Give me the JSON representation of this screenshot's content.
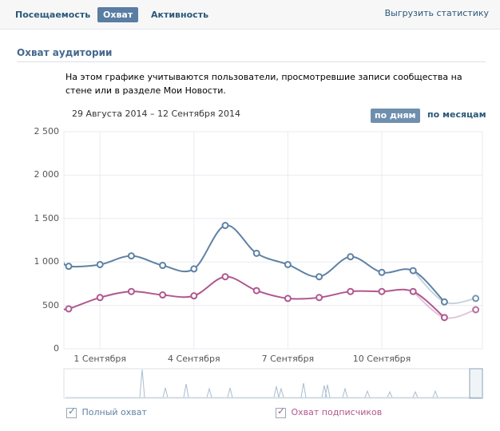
{
  "tabs": [
    {
      "label": "Посещаемость"
    },
    {
      "label": "Охват"
    },
    {
      "label": "Активность"
    }
  ],
  "export_label": "Выгрузить статистику",
  "section_title": "Охват аудитории",
  "description": "На этом графике учитываются пользователи, просмотревшие записи сообщества на стене или в разделе Мои Новости.",
  "date_range": "29 Августа 2014 – 12 Сентября 2014",
  "period_buttons": {
    "days": "по дням",
    "months": "по месяцам"
  },
  "legend": [
    {
      "label": "Полный охват",
      "color": "#5f82a3",
      "checked": true
    },
    {
      "label": "Охват подписчиков",
      "color": "#b0578f",
      "checked": true
    }
  ],
  "chart_data": {
    "type": "line",
    "ylim": [
      0,
      2500
    ],
    "yticks": [
      "2 500",
      "2 000",
      "1 500",
      "1 000",
      "500",
      "0"
    ],
    "x_labels": [
      {
        "label": "1 Сентября",
        "index": 1
      },
      {
        "label": "4 Сентября",
        "index": 4
      },
      {
        "label": "7 Сентября",
        "index": 7
      },
      {
        "label": "10 Сентября",
        "index": 10
      }
    ],
    "series": [
      {
        "name": "Полный охват",
        "color": "#5f82a3",
        "values": [
          950,
          970,
          1070,
          960,
          920,
          1420,
          1100,
          970,
          830,
          1060,
          880,
          900,
          540,
          580
        ]
      },
      {
        "name": "Охват подписчиков",
        "color": "#b0578f",
        "values": [
          460,
          590,
          660,
          620,
          610,
          830,
          670,
          580,
          590,
          660,
          660,
          660,
          360,
          450
        ]
      }
    ]
  }
}
